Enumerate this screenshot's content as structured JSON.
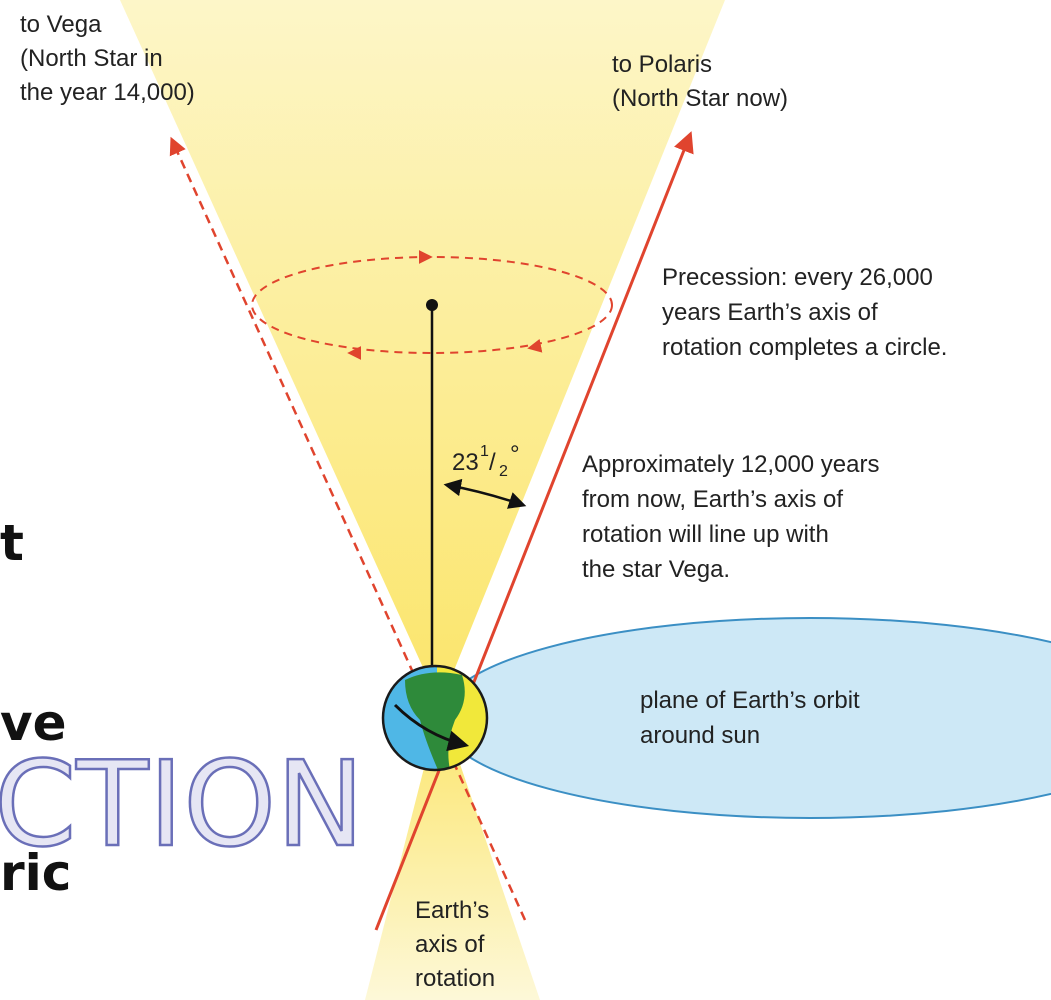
{
  "vega_label": [
    "to Vega",
    "(North Star in",
    "the year 14,000)"
  ],
  "polaris_label": [
    "to Polaris",
    "(North Star now)"
  ],
  "precession_note": [
    "Precession: every 26,000",
    "years Earth’s axis of",
    "rotation completes a circle."
  ],
  "tilt_angle": {
    "whole": "23",
    "numerator": "1",
    "slash": "/",
    "denominator": "2",
    "unit": "°"
  },
  "vega_note": [
    "Approximately 12,000 years",
    "from now, Earth’s axis of",
    "rotation will line up with",
    "the star Vega."
  ],
  "orbit_label": [
    "plane of Earth’s orbit",
    "around sun"
  ],
  "axis_label": [
    "Earth’s",
    "axis of",
    "rotation"
  ],
  "side_fragments": [
    "t",
    "ve",
    "ric"
  ],
  "watermark": "CTION"
}
